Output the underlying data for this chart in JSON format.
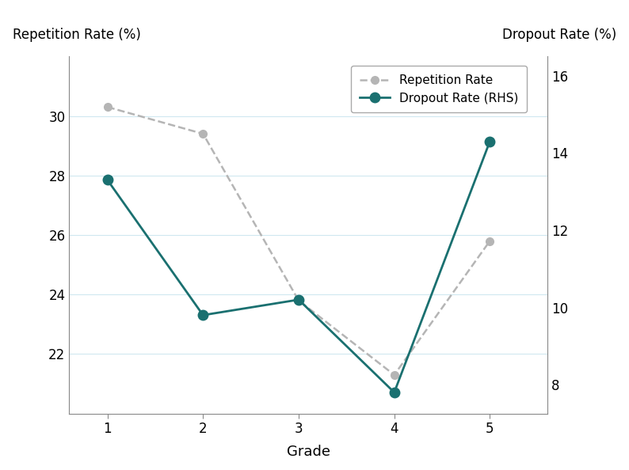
{
  "grades": [
    1,
    2,
    3,
    4,
    5
  ],
  "repetition_rate": [
    30.3,
    29.4,
    23.8,
    21.3,
    25.8
  ],
  "dropout_rate": [
    13.3,
    9.8,
    10.2,
    7.8,
    14.3
  ],
  "rep_color": "#b5b5b5",
  "drop_color": "#1a7070",
  "ylabel_left": "Repetition Rate (%)",
  "ylabel_right": "Dropout Rate (%)",
  "xlabel": "Grade",
  "legend_rep": "Repetition Rate",
  "legend_drop": "Dropout Rate (RHS)",
  "ylim_left": [
    20.0,
    32.0
  ],
  "ylim_right": [
    7.25,
    16.5
  ],
  "yticks_left": [
    22,
    24,
    26,
    28,
    30
  ],
  "yticks_right": [
    8,
    10,
    12,
    14,
    16
  ],
  "fig_color": "#ffffff"
}
